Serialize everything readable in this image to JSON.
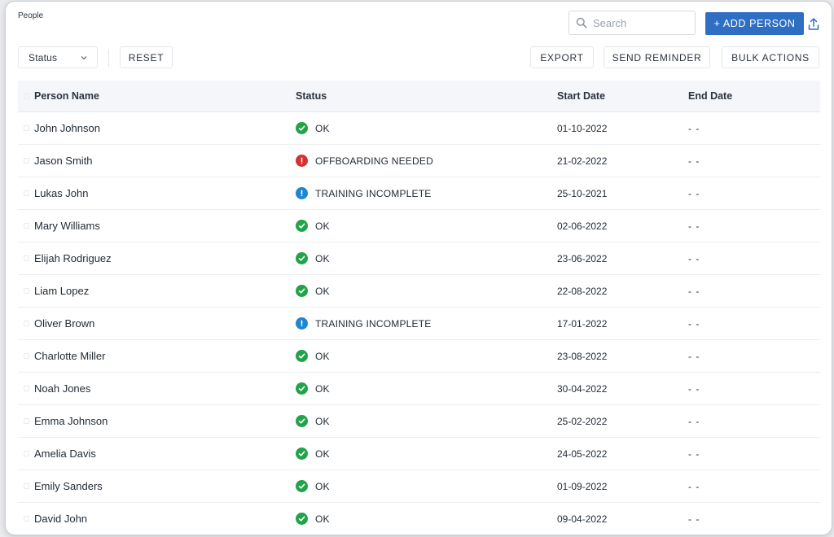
{
  "page": {
    "title": "People"
  },
  "search": {
    "placeholder": "Search"
  },
  "header": {
    "add_label": "+ ADD PERSON"
  },
  "toolbar": {
    "status_label": "Status",
    "reset_label": "RESET",
    "export_label": "EXPORT",
    "send_reminder_label": "SEND REMINDER",
    "bulk_actions_label": "BULK ACTIONS"
  },
  "table": {
    "headers": {
      "name": "Person Name",
      "status": "Status",
      "start": "Start Date",
      "end": "End Date"
    },
    "rows": [
      {
        "name": "John Johnson",
        "status": "OK",
        "status_type": "ok",
        "start": "01-10-2022",
        "end": "- -"
      },
      {
        "name": "Jason Smith",
        "status": "OFFBOARDING NEEDED",
        "status_type": "error",
        "start": "21-02-2022",
        "end": "- -"
      },
      {
        "name": "Lukas John",
        "status": "TRAINING INCOMPLETE",
        "status_type": "info",
        "start": "25-10-2021",
        "end": "- -"
      },
      {
        "name": "Mary Williams",
        "status": "OK",
        "status_type": "ok",
        "start": "02-06-2022",
        "end": "- -"
      },
      {
        "name": "Elijah Rodriguez",
        "status": "OK",
        "status_type": "ok",
        "start": "23-06-2022",
        "end": "- -"
      },
      {
        "name": "Liam Lopez",
        "status": "OK",
        "status_type": "ok",
        "start": "22-08-2022",
        "end": "- -"
      },
      {
        "name": "Oliver Brown",
        "status": "TRAINING INCOMPLETE",
        "status_type": "info",
        "start": "17-01-2022",
        "end": "- -"
      },
      {
        "name": "Charlotte Miller",
        "status": "OK",
        "status_type": "ok",
        "start": "23-08-2022",
        "end": "- -"
      },
      {
        "name": "Noah Jones",
        "status": "OK",
        "status_type": "ok",
        "start": "30-04-2022",
        "end": "- -"
      },
      {
        "name": "Emma Johnson",
        "status": "OK",
        "status_type": "ok",
        "start": "25-02-2022",
        "end": "- -"
      },
      {
        "name": "Amelia Davis",
        "status": "OK",
        "status_type": "ok",
        "start": "24-05-2022",
        "end": "- -"
      },
      {
        "name": "Emily Sanders",
        "status": "OK",
        "status_type": "ok",
        "start": "01-09-2022",
        "end": "- -"
      },
      {
        "name": "David John",
        "status": "OK",
        "status_type": "ok",
        "start": "09-04-2022",
        "end": "- -"
      }
    ]
  },
  "colors": {
    "ok": "#22a34a",
    "error": "#d63030",
    "info": "#1c86d1",
    "accent": "#2e6fc4"
  },
  "icons": {
    "ok": "check-circle-icon",
    "error": "exclamation-circle-icon",
    "info": "info-circle-icon"
  }
}
